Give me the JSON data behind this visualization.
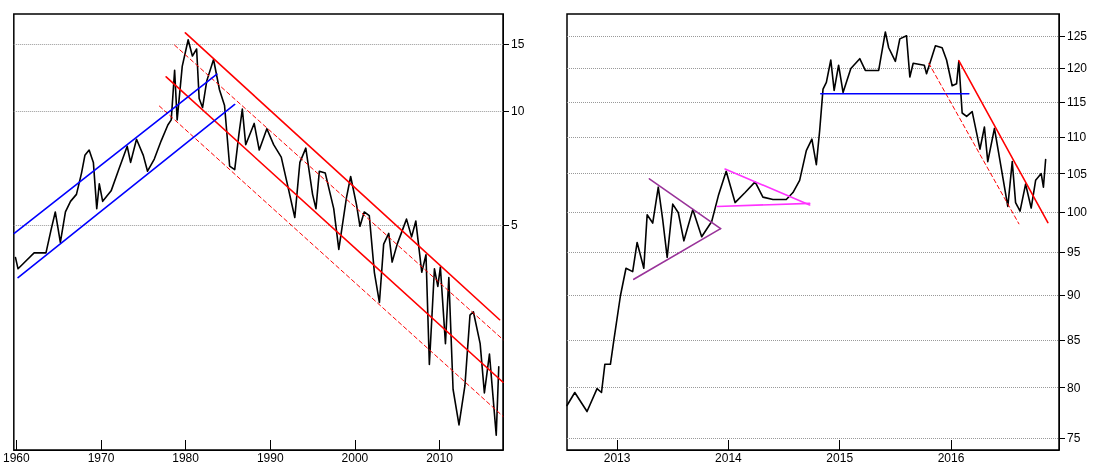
{
  "chart_data": [
    {
      "type": "line",
      "log": "y",
      "grid": "y",
      "marker": "none",
      "line_style": "solid",
      "xlim": [
        1959.7,
        2017.5
      ],
      "xticks": [
        1960,
        1970,
        1980,
        1990,
        2000,
        2010
      ],
      "ylim": [
        1.28,
        18
      ],
      "yticks": [
        5,
        10,
        15
      ],
      "series": [
        {
          "color": "#000000",
          "x": [
            1959.9,
            1960.2,
            1960.8,
            1962.1,
            1963.5,
            1964.1,
            1964.6,
            1965.2,
            1965.8,
            1966.4,
            1967.1,
            1967.7,
            1968.1,
            1968.6,
            1969.1,
            1969.5,
            1969.8,
            1970.2,
            1971.2,
            1972.1,
            1973.1,
            1973.5,
            1974.2,
            1975.0,
            1975.5,
            1976.3,
            1977.1,
            1977.9,
            1978.3,
            1978.7,
            1979.0,
            1979.6,
            1980.3,
            1980.8,
            1981.3,
            1981.6,
            1982.0,
            1982.5,
            1983.3,
            1984.0,
            1984.6,
            1985.2,
            1985.8,
            1986.3,
            1986.7,
            1987.1,
            1988.1,
            1988.7,
            1989.6,
            1990.4,
            1991.3,
            1992.1,
            1992.9,
            1993.5,
            1994.2,
            1995.0,
            1995.4,
            1995.8,
            1996.5,
            1997.5,
            1998.1,
            1999.0,
            1999.5,
            2000.2,
            2000.6,
            2001.1,
            2001.7,
            2002.3,
            2002.9,
            2003.4,
            2004.0,
            2004.4,
            2005.0,
            2006.1,
            2006.7,
            2007.2,
            2007.9,
            2008.4,
            2008.8,
            2009.4,
            2009.8,
            2010.1,
            2010.7,
            2011.1,
            2011.6,
            2012.3,
            2013.0,
            2013.6,
            2014.0,
            2014.8,
            2015.3,
            2015.9,
            2016.7,
            2017.0
          ],
          "values": [
            4.11,
            3.84,
            3.96,
            4.23,
            4.23,
            4.86,
            5.42,
            4.51,
            5.42,
            5.78,
            6.03,
            6.86,
            7.64,
            7.89,
            7.32,
            5.53,
            6.43,
            5.78,
            6.16,
            7.01,
            8.07,
            7.32,
            8.42,
            7.64,
            6.94,
            7.47,
            8.33,
            9.18,
            9.47,
            12.8,
            9.47,
            13.1,
            15.4,
            13.95,
            14.56,
            10.78,
            10.21,
            12.0,
            13.66,
            11.37,
            10.33,
            7.16,
            7.01,
            8.69,
            10.11,
            8.15,
            9.27,
            7.89,
            8.98,
            8.15,
            7.56,
            6.3,
            5.24,
            7.32,
            7.98,
            6.03,
            5.53,
            6.94,
            6.86,
            5.53,
            4.32,
            5.9,
            6.72,
            5.65,
            4.97,
            5.42,
            5.3,
            3.76,
            3.13,
            4.46,
            4.76,
            4.0,
            4.46,
            5.19,
            4.66,
            5.13,
            3.76,
            4.18,
            2.15,
            3.84,
            3.45,
            3.88,
            2.44,
            3.64,
            1.85,
            1.49,
            1.89,
            2.9,
            2.96,
            2.44,
            1.81,
            2.29,
            1.4,
            2.12
          ]
        },
        {
          "color": "#ff0000",
          "x": [
            1979.97,
            2017.1
          ],
          "values": [
            16.05,
            2.82
          ]
        },
        {
          "color": "#ff0000",
          "line_style": "dashed",
          "x": [
            1978.7,
            2017.5
          ],
          "values": [
            14.9,
            2.5
          ]
        },
        {
          "color": "#ff0000",
          "x": [
            1977.7,
            2017.5
          ],
          "values": [
            12.3,
            1.93
          ]
        },
        {
          "color": "#ff0000",
          "line_style": "dashed",
          "x": [
            1976.9,
            2017.5
          ],
          "values": [
            10.3,
            1.57
          ]
        },
        {
          "color": "#0000ff",
          "x": [
            1960.2,
            1985.8
          ],
          "values": [
            3.64,
            10.4
          ]
        },
        {
          "color": "#0000ff",
          "x": [
            1959.75,
            1983.7
          ],
          "values": [
            4.76,
            12.5
          ]
        }
      ]
    },
    {
      "type": "line",
      "log": "y",
      "grid": "y",
      "marker": "none",
      "line_style": "solid",
      "xlim": [
        2012.55,
        2016.97
      ],
      "xticks": [
        2013,
        2014,
        2015,
        2016
      ],
      "ylim": [
        73.9,
        128.6
      ],
      "yticks": [
        75,
        80,
        85,
        90,
        95,
        100,
        105,
        110,
        115,
        120,
        125
      ],
      "series": [
        {
          "color": "#000000",
          "x": [
            2012.55,
            2012.62,
            2012.73,
            2012.82,
            2012.86,
            2012.89,
            2012.94,
            2012.97,
            2013.03,
            2013.08,
            2013.14,
            2013.18,
            2013.24,
            2013.27,
            2013.32,
            2013.37,
            2013.41,
            2013.45,
            2013.5,
            2013.55,
            2013.6,
            2013.68,
            2013.76,
            2013.85,
            2013.91,
            2013.98,
            2014.06,
            2014.15,
            2014.24,
            2014.31,
            2014.4,
            2014.52,
            2014.58,
            2014.64,
            2014.7,
            2014.75,
            2014.79,
            2014.82,
            2014.85,
            2014.88,
            2014.92,
            2014.95,
            2014.99,
            2015.03,
            2015.1,
            2015.18,
            2015.23,
            2015.35,
            2015.41,
            2015.44,
            2015.5,
            2015.54,
            2015.6,
            2015.63,
            2015.66,
            2015.76,
            2015.78,
            2015.86,
            2015.92,
            2015.96,
            2016.01,
            2016.05,
            2016.07,
            2016.1,
            2016.14,
            2016.19,
            2016.26,
            2016.3,
            2016.33,
            2016.39,
            2016.43,
            2016.51,
            2016.55,
            2016.58,
            2016.62,
            2016.67,
            2016.72,
            2016.76,
            2016.81,
            2016.83,
            2016.85
          ],
          "values": [
            78.2,
            79.5,
            77.6,
            79.9,
            79.5,
            82.4,
            82.4,
            84.9,
            89.9,
            93.1,
            92.7,
            96.2,
            93.1,
            99.65,
            98.6,
            103.2,
            99.0,
            94.4,
            101.0,
            99.9,
            96.4,
            100.3,
            96.9,
            98.8,
            102.1,
            105.3,
            101.2,
            102.5,
            103.9,
            101.9,
            101.6,
            101.6,
            102.5,
            104.1,
            108.1,
            109.7,
            106.2,
            110.9,
            116.9,
            117.9,
            121.3,
            116.7,
            120.5,
            116.4,
            120.0,
            121.5,
            119.7,
            119.7,
            125.7,
            123.2,
            121.1,
            124.6,
            125.1,
            118.7,
            120.8,
            120.5,
            119.2,
            123.5,
            123.2,
            121.3,
            117.4,
            117.7,
            121.1,
            113.4,
            112.9,
            113.6,
            108.3,
            111.4,
            106.6,
            111.2,
            107.6,
            100.7,
            106.6,
            101.2,
            100.1,
            103.6,
            100.5,
            104.1,
            105.0,
            103.2,
            106.9
          ]
        },
        {
          "color": "#993399",
          "x": [
            2013.29,
            2013.93
          ],
          "values": [
            104.3,
            97.9
          ]
        },
        {
          "color": "#993399",
          "x": [
            2013.15,
            2013.93
          ],
          "values": [
            91.8,
            97.9
          ]
        },
        {
          "color": "#ff33ff",
          "x": [
            2013.97,
            2014.73
          ],
          "values": [
            105.6,
            100.9
          ]
        },
        {
          "color": "#ff33ff",
          "x": [
            2013.9,
            2014.73
          ],
          "values": [
            100.7,
            101.1
          ]
        },
        {
          "color": "#0000ff",
          "x": [
            2014.83,
            2016.16
          ],
          "values": [
            116.2,
            116.2
          ]
        },
        {
          "color": "#ff0000",
          "x": [
            2016.07,
            2016.87
          ],
          "values": [
            121.2,
            98.65
          ]
        },
        {
          "color": "#ff0000",
          "line_style": "dashed",
          "x": [
            2015.8,
            2016.61
          ],
          "values": [
            120.8,
            98.5
          ]
        }
      ]
    }
  ]
}
